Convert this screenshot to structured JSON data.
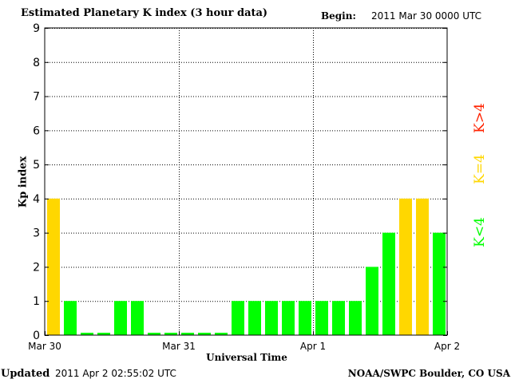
{
  "header": {
    "title": "Estimated Planetary K index (3 hour data)",
    "begin_label": "Begin:",
    "begin_value": "2011 Mar 30 0000 UTC"
  },
  "footer": {
    "updated_label": "Updated",
    "updated_value": "2011 Apr  2 02:55:02 UTC",
    "org": "NOAA/SWPC Boulder, CO USA"
  },
  "legend": [
    {
      "label": "K>4",
      "color": "#ff2200"
    },
    {
      "label": "K=4",
      "color": "#ffd700"
    },
    {
      "label": "K<4",
      "color": "#00ff00"
    }
  ],
  "chart_data": {
    "type": "bar",
    "title": "Estimated Planetary K index (3 hour data)",
    "xlabel": "Universal Time",
    "ylabel": "Kp index",
    "ylim": [
      0,
      9
    ],
    "yticks": [
      "0",
      "1",
      "2",
      "3",
      "4",
      "5",
      "6",
      "7",
      "8",
      "9"
    ],
    "xticks": [
      "Mar 30",
      "Mar 31",
      "Apr 1",
      "Apr 2"
    ],
    "grid": true,
    "colors": {
      "below4": "#00ff00",
      "equal4": "#ffd700",
      "above4": "#ff2200"
    },
    "values": [
      4,
      1,
      0,
      0,
      1,
      1,
      0,
      0,
      0,
      0,
      0,
      1,
      1,
      1,
      1,
      1,
      1,
      1,
      1,
      2,
      3,
      4,
      4,
      3
    ]
  }
}
